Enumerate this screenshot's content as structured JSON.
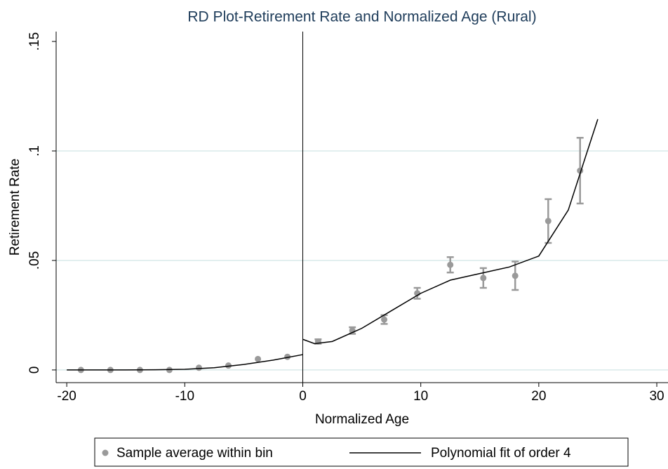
{
  "chart_data": {
    "type": "rd-plot",
    "title": "RD Plot-Retirement Rate and Normalized Age (Rural)",
    "x_label": "Normalized Age",
    "y_label": "Retirement Rate",
    "xlim": [
      -20.9,
      30.95
    ],
    "ylim": [
      -0.0058,
      0.1545
    ],
    "xticks": [
      -20,
      -10,
      0,
      10,
      20,
      30
    ],
    "yticks": [
      {
        "value": 0,
        "label": "0"
      },
      {
        "value": 0.05,
        "label": ".05"
      },
      {
        "value": 0.1,
        "label": ".1"
      },
      {
        "value": 0.15,
        "label": ".15"
      }
    ],
    "grid": true,
    "cutoff": 0,
    "series": [
      {
        "name": "Sample average within bin",
        "color": "#9a9a9a",
        "kind": "points",
        "x": [
          -18.8,
          -16.3,
          -13.8,
          -11.3,
          -8.8,
          -6.3,
          -3.8,
          -1.3,
          1.3,
          4.2,
          6.9,
          9.7,
          12.5,
          15.3,
          18.0,
          20.8,
          23.5
        ],
        "values": [
          0,
          0,
          0,
          0,
          0.001,
          0.002,
          0.005,
          0.006,
          0.013,
          0.018,
          0.023,
          0.035,
          0.048,
          0.042,
          0.043,
          0.068,
          0.091
        ],
        "errors": [
          null,
          null,
          null,
          null,
          null,
          null,
          null,
          null,
          0.001,
          0.0015,
          0.002,
          0.0025,
          0.0035,
          0.0045,
          0.0065,
          0.01,
          0.015
        ]
      },
      {
        "name": "Polynomial fit of order 4",
        "color": "#000000",
        "kind": "line",
        "x": [
          -20,
          -17.5,
          -15,
          -12.5,
          -10,
          -7.5,
          -5,
          -2.5,
          0,
          0,
          0,
          1,
          2.5,
          5,
          7.5,
          10,
          12.5,
          15,
          17.5,
          20,
          22.5,
          24,
          25
        ],
        "values": [
          0,
          0,
          0,
          0.0001,
          0.0003,
          0.001,
          0.0025,
          0.0045,
          0.007,
          null,
          0.014,
          0.012,
          0.013,
          0.019,
          0.027,
          0.035,
          0.041,
          0.044,
          0.047,
          0.052,
          0.073,
          0.098,
          0.1145
        ]
      }
    ]
  }
}
